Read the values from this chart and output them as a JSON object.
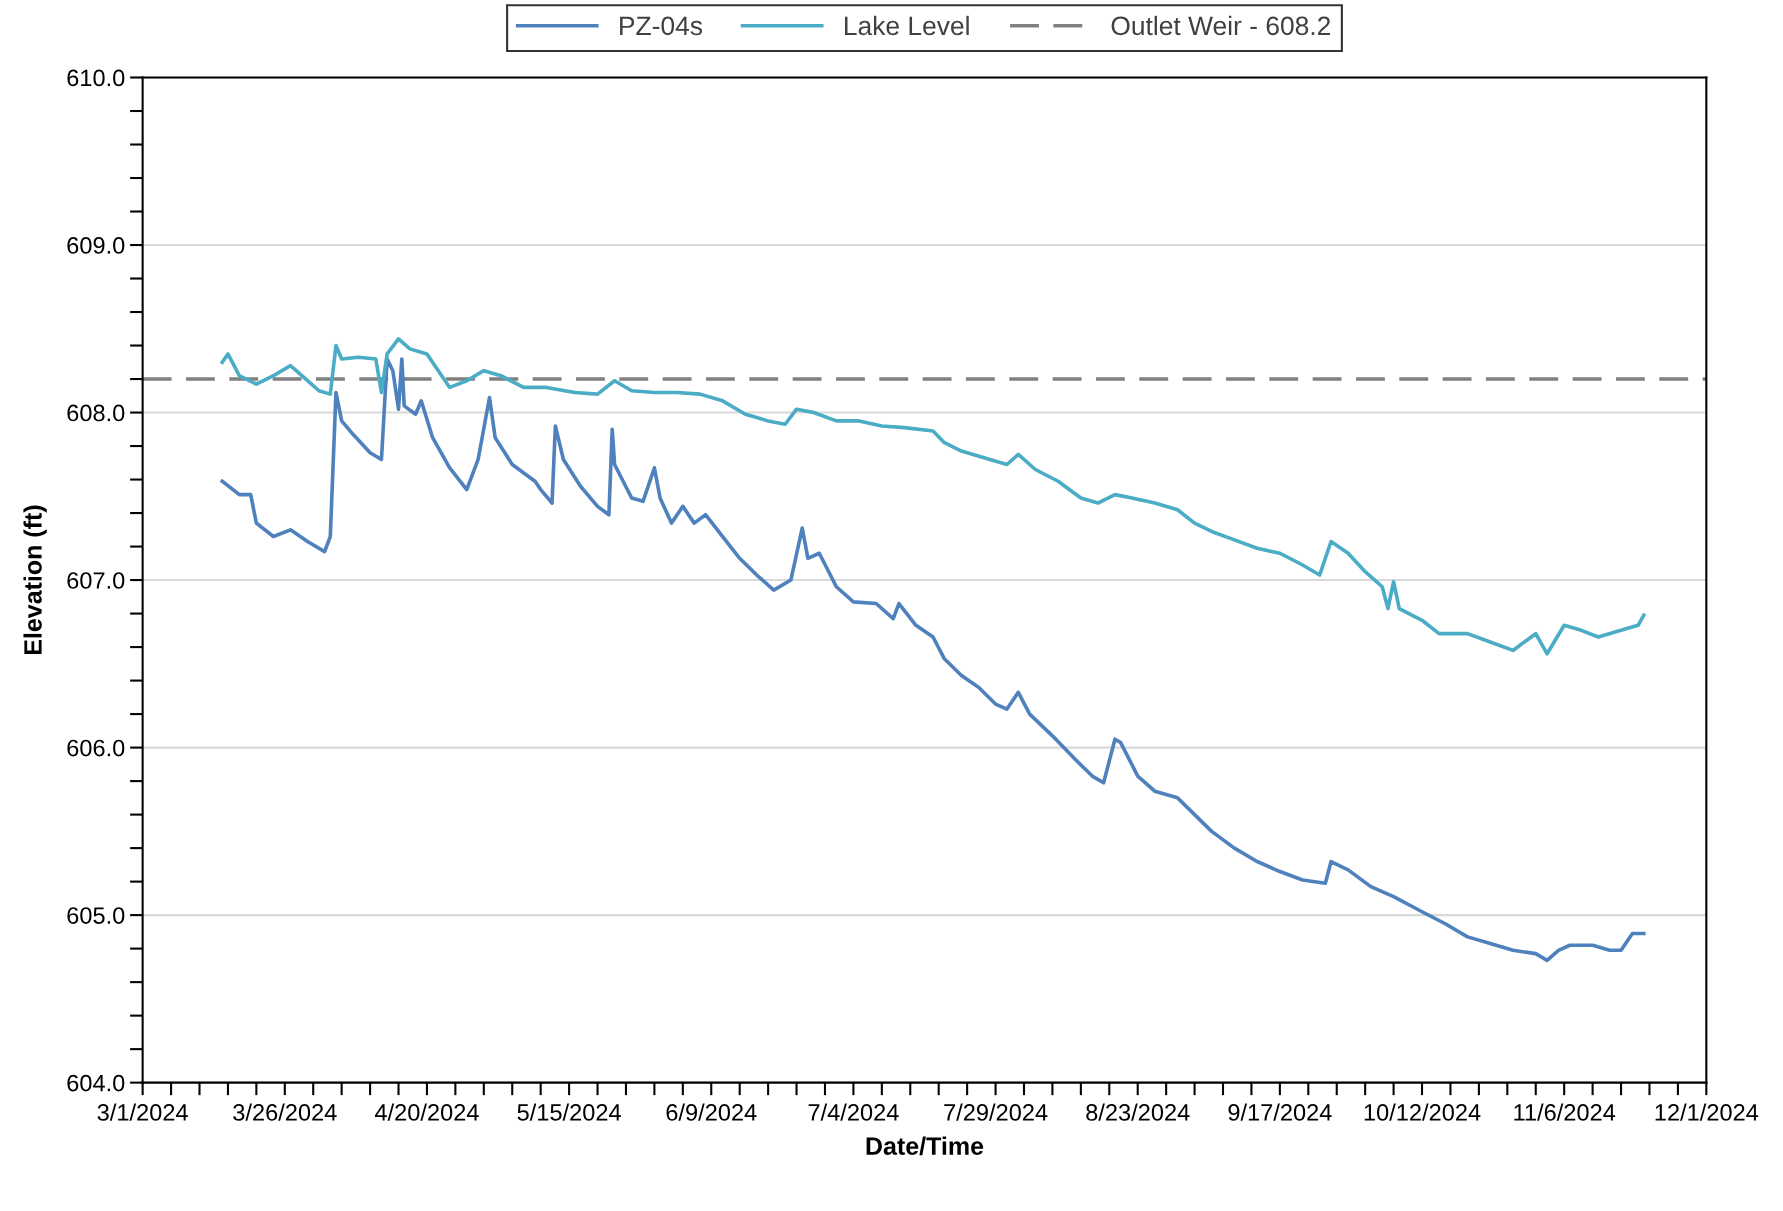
{
  "chart_data": {
    "type": "line",
    "xlabel": "Date/Time",
    "ylabel": "Elevation (ft)",
    "xlim": [
      "2024-03-01",
      "2024-12-01"
    ],
    "ylim": [
      604,
      610
    ],
    "xticks": [
      {
        "value": "2024-03-01",
        "label": "3/1/2024"
      },
      {
        "value": "2024-03-06",
        "label": null
      },
      {
        "value": "2024-03-11",
        "label": null
      },
      {
        "value": "2024-03-16",
        "label": null
      },
      {
        "value": "2024-03-21",
        "label": null
      },
      {
        "value": "2024-03-26",
        "label": "3/26/2024"
      },
      {
        "value": "2024-03-31",
        "label": null
      },
      {
        "value": "2024-04-05",
        "label": null
      },
      {
        "value": "2024-04-10",
        "label": null
      },
      {
        "value": "2024-04-15",
        "label": null
      },
      {
        "value": "2024-04-20",
        "label": "4/20/2024"
      },
      {
        "value": "2024-04-25",
        "label": null
      },
      {
        "value": "2024-04-30",
        "label": null
      },
      {
        "value": "2024-05-05",
        "label": null
      },
      {
        "value": "2024-05-10",
        "label": null
      },
      {
        "value": "2024-05-15",
        "label": "5/15/2024"
      },
      {
        "value": "2024-05-20",
        "label": null
      },
      {
        "value": "2024-05-25",
        "label": null
      },
      {
        "value": "2024-05-30",
        "label": null
      },
      {
        "value": "2024-06-04",
        "label": null
      },
      {
        "value": "2024-06-09",
        "label": "6/9/2024"
      },
      {
        "value": "2024-06-14",
        "label": null
      },
      {
        "value": "2024-06-19",
        "label": null
      },
      {
        "value": "2024-06-24",
        "label": null
      },
      {
        "value": "2024-06-29",
        "label": null
      },
      {
        "value": "2024-07-04",
        "label": "7/4/2024"
      },
      {
        "value": "2024-07-09",
        "label": null
      },
      {
        "value": "2024-07-14",
        "label": null
      },
      {
        "value": "2024-07-19",
        "label": null
      },
      {
        "value": "2024-07-24",
        "label": null
      },
      {
        "value": "2024-07-29",
        "label": "7/29/2024"
      },
      {
        "value": "2024-08-03",
        "label": null
      },
      {
        "value": "2024-08-08",
        "label": null
      },
      {
        "value": "2024-08-13",
        "label": null
      },
      {
        "value": "2024-08-18",
        "label": null
      },
      {
        "value": "2024-08-23",
        "label": "8/23/2024"
      },
      {
        "value": "2024-08-28",
        "label": null
      },
      {
        "value": "2024-09-02",
        "label": null
      },
      {
        "value": "2024-09-07",
        "label": null
      },
      {
        "value": "2024-09-12",
        "label": null
      },
      {
        "value": "2024-09-17",
        "label": "9/17/2024"
      },
      {
        "value": "2024-09-22",
        "label": null
      },
      {
        "value": "2024-09-27",
        "label": null
      },
      {
        "value": "2024-10-02",
        "label": null
      },
      {
        "value": "2024-10-07",
        "label": null
      },
      {
        "value": "2024-10-12",
        "label": "10/12/2024"
      },
      {
        "value": "2024-10-17",
        "label": null
      },
      {
        "value": "2024-10-22",
        "label": null
      },
      {
        "value": "2024-10-27",
        "label": null
      },
      {
        "value": "2024-11-01",
        "label": null
      },
      {
        "value": "2024-11-06",
        "label": "11/6/2024"
      },
      {
        "value": "2024-11-11",
        "label": null
      },
      {
        "value": "2024-11-16",
        "label": null
      },
      {
        "value": "2024-11-21",
        "label": null
      },
      {
        "value": "2024-11-26",
        "label": null
      },
      {
        "value": "2024-12-01",
        "label": "12/1/2024"
      }
    ],
    "yticks": [
      {
        "value": 604,
        "label": "604.0"
      },
      {
        "value": 604.2,
        "label": null
      },
      {
        "value": 604.4,
        "label": null
      },
      {
        "value": 604.6,
        "label": null
      },
      {
        "value": 604.8,
        "label": null
      },
      {
        "value": 605,
        "label": "605.0"
      },
      {
        "value": 605.2,
        "label": null
      },
      {
        "value": 605.4,
        "label": null
      },
      {
        "value": 605.6,
        "label": null
      },
      {
        "value": 605.8,
        "label": null
      },
      {
        "value": 606,
        "label": "606.0"
      },
      {
        "value": 606.2,
        "label": null
      },
      {
        "value": 606.4,
        "label": null
      },
      {
        "value": 606.6,
        "label": null
      },
      {
        "value": 606.8,
        "label": null
      },
      {
        "value": 607,
        "label": "607.0"
      },
      {
        "value": 607.2,
        "label": null
      },
      {
        "value": 607.4,
        "label": null
      },
      {
        "value": 607.6,
        "label": null
      },
      {
        "value": 607.8,
        "label": null
      },
      {
        "value": 608,
        "label": "608.0"
      },
      {
        "value": 608.2,
        "label": null
      },
      {
        "value": 608.4,
        "label": null
      },
      {
        "value": 608.6,
        "label": null
      },
      {
        "value": 608.8,
        "label": null
      },
      {
        "value": 609,
        "label": "609.0"
      },
      {
        "value": 609.2,
        "label": null
      },
      {
        "value": 609.4,
        "label": null
      },
      {
        "value": 609.6,
        "label": null
      },
      {
        "value": 609.8,
        "label": null
      },
      {
        "value": 610,
        "label": "610.0"
      }
    ],
    "grid": "y",
    "legend": "top",
    "marker": "none",
    "line_style": "solid",
    "series": [
      {
        "name": "PZ-04s",
        "color": "#4f81bd",
        "x": [
          "2024-03-15",
          "2024-03-18",
          "2024-03-20",
          "2024-03-21",
          "2024-03-24",
          "2024-03-27",
          "2024-03-30",
          "2024-04-02",
          "2024-04-03",
          "2024-04-04",
          "2024-04-05",
          "2024-04-07",
          "2024-04-10",
          "2024-04-12",
          "2024-04-13",
          "2024-04-14",
          "2024-04-15",
          "2024-04-15T14:00",
          "2024-04-16",
          "2024-04-18",
          "2024-04-19",
          "2024-04-21",
          "2024-04-24",
          "2024-04-27",
          "2024-04-29",
          "2024-05-01",
          "2024-05-02",
          "2024-05-05",
          "2024-05-09",
          "2024-05-10",
          "2024-05-12",
          "2024-05-12T14:00",
          "2024-05-14",
          "2024-05-17",
          "2024-05-20",
          "2024-05-22",
          "2024-05-22T14:00",
          "2024-05-23",
          "2024-05-26",
          "2024-05-28",
          "2024-05-30",
          "2024-05-31",
          "2024-06-02",
          "2024-06-04",
          "2024-06-06",
          "2024-06-08",
          "2024-06-11",
          "2024-06-14",
          "2024-06-17",
          "2024-06-20",
          "2024-06-23",
          "2024-06-25",
          "2024-06-26",
          "2024-06-28",
          "2024-07-01",
          "2024-07-04",
          "2024-07-08",
          "2024-07-11",
          "2024-07-12",
          "2024-07-15",
          "2024-07-18",
          "2024-07-20",
          "2024-07-23",
          "2024-07-26",
          "2024-07-29",
          "2024-07-31",
          "2024-08-02",
          "2024-08-04",
          "2024-08-08",
          "2024-08-12",
          "2024-08-15",
          "2024-08-17",
          "2024-08-19",
          "2024-08-20",
          "2024-08-23",
          "2024-08-26",
          "2024-08-30",
          "2024-09-02",
          "2024-09-05",
          "2024-09-09",
          "2024-09-13",
          "2024-09-17",
          "2024-09-21",
          "2024-09-25",
          "2024-09-26",
          "2024-09-29",
          "2024-10-03",
          "2024-10-07",
          "2024-10-12",
          "2024-10-16",
          "2024-10-20",
          "2024-10-24",
          "2024-10-28",
          "2024-11-01",
          "2024-11-03",
          "2024-11-05",
          "2024-11-07",
          "2024-11-11",
          "2024-11-14",
          "2024-11-16",
          "2024-11-18",
          "2024-11-20"
        ],
        "values": [
          607.59,
          607.51,
          607.51,
          607.34,
          607.26,
          607.3,
          607.23,
          607.17,
          607.26,
          608.12,
          607.95,
          607.87,
          607.76,
          607.72,
          608.32,
          608.25,
          608.02,
          608.32,
          608.04,
          607.99,
          608.07,
          607.85,
          607.67,
          607.54,
          607.72,
          608.09,
          607.85,
          607.69,
          607.59,
          607.54,
          607.46,
          607.92,
          607.72,
          607.56,
          607.44,
          607.39,
          607.9,
          607.69,
          607.49,
          607.47,
          607.67,
          607.49,
          607.34,
          607.44,
          607.34,
          607.39,
          607.26,
          607.13,
          607.03,
          606.94,
          607.0,
          607.31,
          607.13,
          607.16,
          606.96,
          606.87,
          606.86,
          606.77,
          606.86,
          606.73,
          606.66,
          606.53,
          606.43,
          606.36,
          606.26,
          606.23,
          606.33,
          606.2,
          606.07,
          605.93,
          605.83,
          605.79,
          606.05,
          606.03,
          605.83,
          605.74,
          605.7,
          605.6,
          605.5,
          605.4,
          605.32,
          605.26,
          605.21,
          605.19,
          605.32,
          605.27,
          605.17,
          605.11,
          605.02,
          604.95,
          604.87,
          604.83,
          604.79,
          604.77,
          604.73,
          604.79,
          604.82,
          604.82,
          604.79,
          604.79,
          604.89,
          604.89
        ]
      },
      {
        "name": "Lake Level",
        "color": "#4bacc6",
        "x": [
          "2024-03-15",
          "2024-03-16",
          "2024-03-18",
          "2024-03-21",
          "2024-03-24",
          "2024-03-27",
          "2024-03-30",
          "2024-04-01",
          "2024-04-03",
          "2024-04-04",
          "2024-04-05",
          "2024-04-08",
          "2024-04-11",
          "2024-04-12",
          "2024-04-13",
          "2024-04-15",
          "2024-04-17",
          "2024-04-20",
          "2024-04-22",
          "2024-04-24",
          "2024-04-27",
          "2024-04-30",
          "2024-05-03",
          "2024-05-07",
          "2024-05-11",
          "2024-05-16",
          "2024-05-20",
          "2024-05-23",
          "2024-05-26",
          "2024-05-30",
          "2024-06-03",
          "2024-06-07",
          "2024-06-11",
          "2024-06-15",
          "2024-06-19",
          "2024-06-22",
          "2024-06-24",
          "2024-06-27",
          "2024-07-01",
          "2024-07-05",
          "2024-07-09",
          "2024-07-13",
          "2024-07-18",
          "2024-07-20",
          "2024-07-23",
          "2024-07-28",
          "2024-07-31",
          "2024-08-02",
          "2024-08-05",
          "2024-08-09",
          "2024-08-13",
          "2024-08-16",
          "2024-08-19",
          "2024-08-22",
          "2024-08-26",
          "2024-08-30",
          "2024-09-02",
          "2024-09-05",
          "2024-09-09",
          "2024-09-13",
          "2024-09-17",
          "2024-09-21",
          "2024-09-24",
          "2024-09-26",
          "2024-09-29",
          "2024-10-02",
          "2024-10-05",
          "2024-10-06",
          "2024-10-07",
          "2024-10-08",
          "2024-10-12",
          "2024-10-15",
          "2024-10-20",
          "2024-10-24",
          "2024-10-28",
          "2024-11-01",
          "2024-11-03",
          "2024-11-06",
          "2024-11-09",
          "2024-11-12",
          "2024-11-16",
          "2024-11-19",
          "2024-11-20"
        ],
        "values": [
          608.3,
          608.35,
          608.22,
          608.17,
          608.22,
          608.28,
          608.19,
          608.13,
          608.11,
          608.4,
          608.32,
          608.33,
          608.32,
          608.12,
          608.35,
          608.44,
          608.38,
          608.35,
          608.25,
          608.15,
          608.19,
          608.25,
          608.22,
          608.15,
          608.15,
          608.12,
          608.11,
          608.19,
          608.13,
          608.12,
          608.12,
          608.11,
          608.07,
          607.99,
          607.95,
          607.93,
          608.02,
          608.0,
          607.95,
          607.95,
          607.92,
          607.91,
          607.89,
          607.82,
          607.77,
          607.72,
          607.69,
          607.75,
          607.66,
          607.59,
          607.49,
          607.46,
          607.51,
          607.49,
          607.46,
          607.42,
          607.34,
          607.29,
          607.24,
          607.19,
          607.16,
          607.09,
          607.03,
          607.23,
          607.16,
          607.05,
          606.96,
          606.83,
          606.99,
          606.83,
          606.76,
          606.68,
          606.68,
          606.63,
          606.58,
          606.68,
          606.56,
          606.73,
          606.7,
          606.66,
          606.7,
          606.73,
          606.79
        ]
      }
    ],
    "ref_lines": [
      {
        "axis": "y",
        "value": 608.2,
        "label": "Outlet Weir - 608.2",
        "color": "#808080",
        "line_style": "dashed"
      }
    ]
  }
}
